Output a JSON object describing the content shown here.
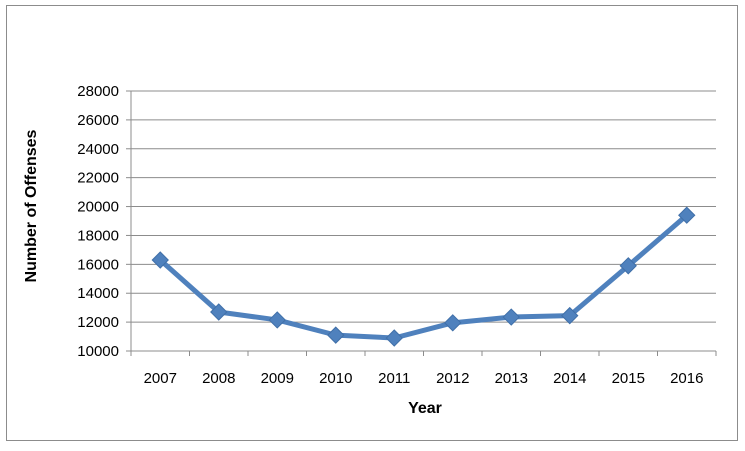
{
  "chart_data": {
    "type": "line",
    "title": "",
    "xlabel": "Year",
    "ylabel": "Number of Offenses",
    "categories": [
      "2007",
      "2008",
      "2009",
      "2010",
      "2011",
      "2012",
      "2013",
      "2014",
      "2015",
      "2016"
    ],
    "series": [
      {
        "values": [
          16300,
          12700,
          12150,
          11100,
          10900,
          11950,
          12350,
          12450,
          15900,
          19400
        ]
      }
    ],
    "ylim": [
      10000,
      28000
    ],
    "yticks": [
      "10000",
      "12000",
      "14000",
      "16000",
      "18000",
      "20000",
      "22000",
      "24000",
      "26000",
      "28000"
    ],
    "grid": "horizontal",
    "legend": "none",
    "colors": {
      "line": "#4f81bd",
      "marker": "#4f81bd",
      "grid": "#8c8c8c",
      "frame": "#8c8c8c"
    }
  }
}
